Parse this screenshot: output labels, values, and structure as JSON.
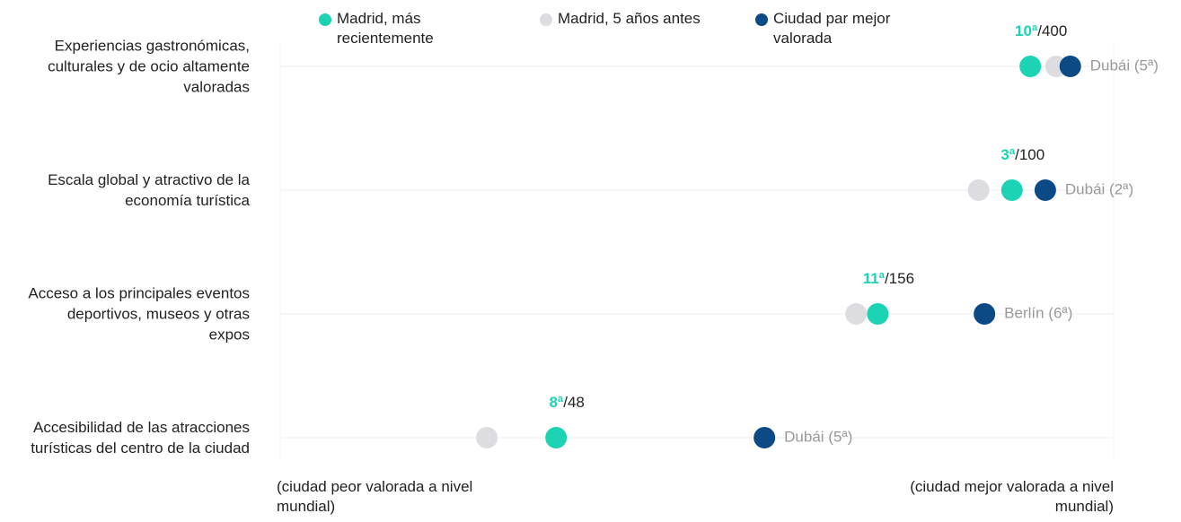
{
  "chart_data": {
    "type": "dot",
    "categories": [
      "Experiencias gastronómicas, culturales y de ocio altamente valoradas",
      "Escala global y atractivo de la economía turística",
      "Acceso a los principales eventos deportivos, museos y otras expos",
      "Accesibilidad de las atracciones turísticas del centro de la ciudad"
    ],
    "series": [
      {
        "name": "Madrid, más recientemente",
        "color": "#1cd3b4",
        "values": [
          90.0,
          87.8,
          71.7,
          33.1
        ]
      },
      {
        "name": "Madrid, 5 años antes",
        "color": "#dcdce1",
        "values": [
          93.1,
          83.8,
          69.1,
          24.8
        ]
      },
      {
        "name": "Ciudad par mejor valorada",
        "color": "#0c4a86",
        "values": [
          94.8,
          91.8,
          84.5,
          58.1
        ]
      }
    ],
    "xlim": [
      0,
      100
    ],
    "rank_labels": [
      "10ª",
      "3ª",
      "11ª",
      "8ª"
    ],
    "rank_totals": [
      "/400",
      "/100",
      "/156",
      "/48"
    ],
    "best_labels": [
      "Dubái (5ª)",
      "Dubái (2ª)",
      "Berlín (6ª)",
      "Dubái (5ª)"
    ],
    "xlim_labels": [
      "(ciudad peor valorada a nivel mundial)",
      "(ciudad mejor valorada a nivel mundial)"
    ]
  }
}
